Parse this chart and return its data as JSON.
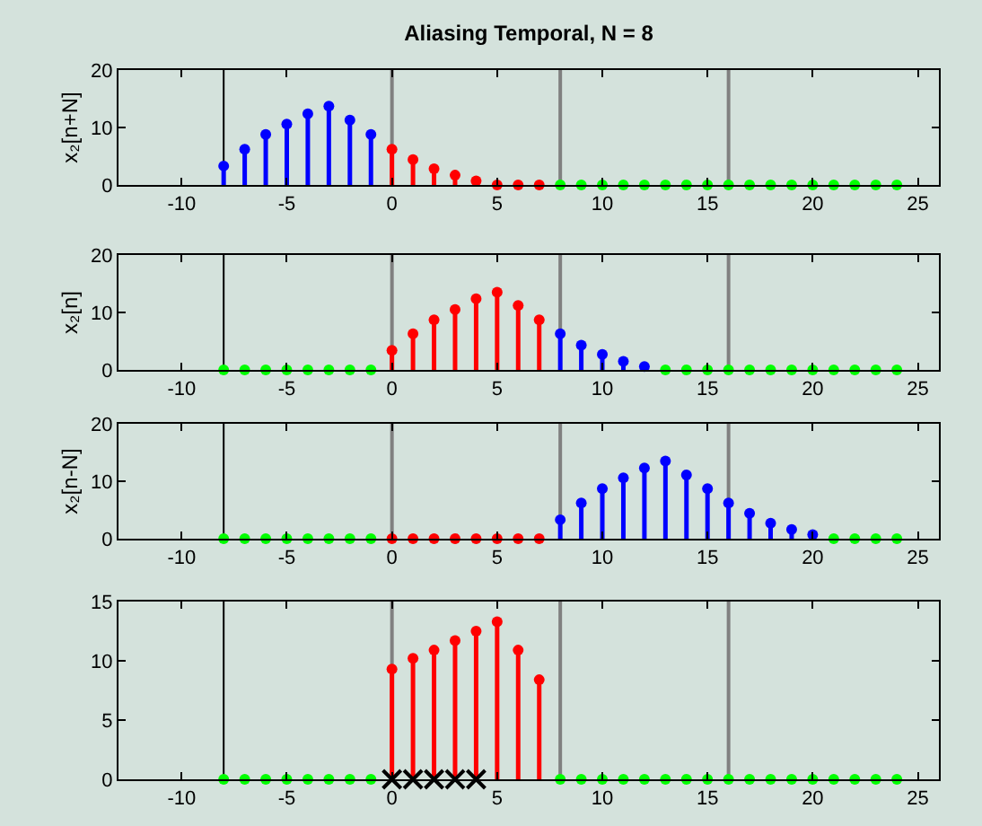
{
  "chart_data": [
    {
      "type": "lollipop",
      "title": "Aliasing Temporal, N = 8",
      "ylabel": "x₂[n+N]",
      "xlim": [
        -13,
        26
      ],
      "xticks": [
        -10,
        -5,
        0,
        5,
        10,
        15,
        20,
        25
      ],
      "ylim": [
        0,
        20
      ],
      "yticks": [
        0,
        10,
        20
      ],
      "marker": "circle",
      "ref_lines": [
        {
          "axis": "x",
          "value": -8,
          "color": "#000000"
        },
        {
          "axis": "x",
          "value": 0,
          "color": "#808080"
        },
        {
          "axis": "x",
          "value": 8,
          "color": "#808080"
        },
        {
          "axis": "x",
          "value": 16,
          "color": "#808080"
        }
      ],
      "series": [
        {
          "color": "#0000ff",
          "x": [
            -8,
            -7,
            -6,
            -5,
            -4,
            -3,
            -2,
            -1
          ],
          "values": [
            3.3,
            6.2,
            8.8,
            10.6,
            12.4,
            13.7,
            11.3,
            8.8
          ]
        },
        {
          "color": "#ff0000",
          "x": [
            0,
            1,
            2,
            3,
            4,
            5,
            6,
            7
          ],
          "values": [
            6.2,
            4.4,
            2.8,
            1.7,
            0.7,
            0,
            0,
            0
          ]
        },
        {
          "color": "#00ff00",
          "x": [
            8,
            9,
            10,
            11,
            12,
            13,
            14,
            15,
            16,
            17,
            18,
            19,
            20,
            21,
            22,
            23,
            24
          ],
          "values": [
            0,
            0,
            0,
            0,
            0,
            0,
            0,
            0,
            0,
            0,
            0,
            0,
            0,
            0,
            0,
            0,
            0
          ]
        }
      ]
    },
    {
      "type": "lollipop",
      "ylabel": "x₂[n]",
      "xlim": [
        -13,
        26
      ],
      "xticks": [
        -10,
        -5,
        0,
        5,
        10,
        15,
        20,
        25
      ],
      "ylim": [
        0,
        20
      ],
      "yticks": [
        0,
        10,
        20
      ],
      "marker": "circle",
      "ref_lines": [
        {
          "axis": "x",
          "value": -8,
          "color": "#000000"
        },
        {
          "axis": "x",
          "value": 0,
          "color": "#808080"
        },
        {
          "axis": "x",
          "value": 8,
          "color": "#808080"
        },
        {
          "axis": "x",
          "value": 16,
          "color": "#808080"
        }
      ],
      "series": [
        {
          "color": "#00ff00",
          "x": [
            -8,
            -7,
            -6,
            -5,
            -4,
            -3,
            -2,
            -1
          ],
          "values": [
            0,
            0,
            0,
            0,
            0,
            0,
            0,
            0
          ]
        },
        {
          "color": "#ff0000",
          "x": [
            0,
            1,
            2,
            3,
            4,
            5,
            6,
            7
          ],
          "values": [
            3.4,
            6.3,
            8.7,
            10.5,
            12.4,
            13.5,
            11.2,
            8.7
          ]
        },
        {
          "color": "#0000ff",
          "x": [
            8,
            9,
            10,
            11,
            12
          ],
          "values": [
            6.3,
            4.3,
            2.7,
            1.5,
            0.6
          ]
        },
        {
          "color": "#00ff00",
          "x": [
            13,
            14,
            15,
            16,
            17,
            18,
            19,
            20,
            21,
            22,
            23,
            24
          ],
          "values": [
            0,
            0,
            0,
            0,
            0,
            0,
            0,
            0,
            0,
            0,
            0,
            0
          ]
        }
      ]
    },
    {
      "type": "lollipop",
      "ylabel": "x₂[n-N]",
      "xlim": [
        -13,
        26
      ],
      "xticks": [
        -10,
        -5,
        0,
        5,
        10,
        15,
        20,
        25
      ],
      "ylim": [
        0,
        20
      ],
      "yticks": [
        0,
        10,
        20
      ],
      "marker": "circle",
      "ref_lines": [
        {
          "axis": "x",
          "value": -8,
          "color": "#000000"
        },
        {
          "axis": "x",
          "value": 0,
          "color": "#808080"
        },
        {
          "axis": "x",
          "value": 8,
          "color": "#808080"
        },
        {
          "axis": "x",
          "value": 16,
          "color": "#808080"
        }
      ],
      "series": [
        {
          "color": "#00ff00",
          "x": [
            -8,
            -7,
            -6,
            -5,
            -4,
            -3,
            -2,
            -1
          ],
          "values": [
            0,
            0,
            0,
            0,
            0,
            0,
            0,
            0
          ]
        },
        {
          "color": "#ff0000",
          "x": [
            0,
            1,
            2,
            3,
            4,
            5,
            6,
            7
          ],
          "values": [
            0,
            0,
            0,
            0,
            0,
            0,
            0,
            0
          ]
        },
        {
          "color": "#0000ff",
          "x": [
            8,
            9,
            10,
            11,
            12,
            13,
            14,
            15,
            16,
            17,
            18,
            19,
            20
          ],
          "values": [
            3.3,
            6.2,
            8.7,
            10.6,
            12.3,
            13.5,
            11.1,
            8.7,
            6.2,
            4.4,
            2.7,
            1.6,
            0.7
          ]
        },
        {
          "color": "#00ff00",
          "x": [
            21,
            22,
            23,
            24
          ],
          "values": [
            0,
            0,
            0,
            0
          ]
        }
      ]
    },
    {
      "type": "lollipop",
      "xlim": [
        -13,
        26
      ],
      "xticks": [
        -10,
        -5,
        0,
        5,
        10,
        15,
        20,
        25
      ],
      "ylim": [
        0,
        15
      ],
      "yticks": [
        0,
        5,
        10,
        15
      ],
      "marker": "circle",
      "ref_lines": [
        {
          "axis": "x",
          "value": -8,
          "color": "#000000"
        },
        {
          "axis": "x",
          "value": 0,
          "color": "#808080"
        },
        {
          "axis": "x",
          "value": 8,
          "color": "#808080"
        },
        {
          "axis": "x",
          "value": 16,
          "color": "#808080"
        }
      ],
      "series": [
        {
          "color": "#00ff00",
          "x": [
            -8,
            -7,
            -6,
            -5,
            -4,
            -3,
            -2,
            -1
          ],
          "values": [
            0,
            0,
            0,
            0,
            0,
            0,
            0,
            0
          ]
        },
        {
          "color": "#ff0000",
          "x": [
            0,
            1,
            2,
            3,
            4,
            5,
            6,
            7
          ],
          "values": [
            9.3,
            10.2,
            10.9,
            11.7,
            12.5,
            13.3,
            10.9,
            8.4
          ]
        },
        {
          "color": "#00ff00",
          "x": [
            8,
            9,
            10,
            11,
            12,
            13,
            14,
            15,
            16,
            17,
            18,
            19,
            20,
            21,
            22,
            23,
            24
          ],
          "values": [
            0,
            0,
            0,
            0,
            0,
            0,
            0,
            0,
            0,
            0,
            0,
            0,
            0,
            0,
            0,
            0,
            0
          ]
        },
        {
          "type": "scatter",
          "marker": "cross",
          "color": "#000000",
          "x": [
            0,
            1,
            2,
            3,
            4
          ],
          "values": [
            0,
            0,
            0,
            0,
            0
          ]
        }
      ]
    }
  ]
}
